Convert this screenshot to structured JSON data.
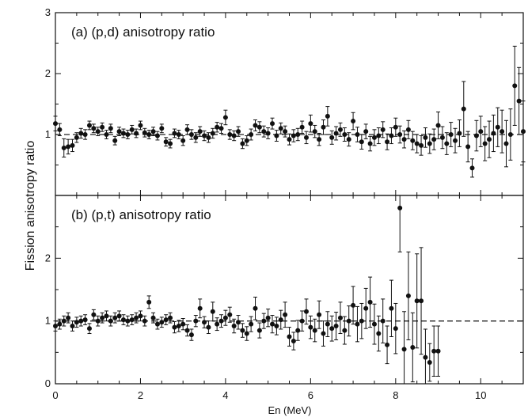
{
  "chart_data": {
    "type": "scatter",
    "ylabel": "Fission anisotropy ratio",
    "xlabel": "En (MeV)",
    "xlim": [
      0,
      11
    ],
    "x_ticks": [
      "0",
      "2",
      "4",
      "6",
      "8",
      "10"
    ],
    "panels": [
      {
        "title": "(a) (p,d) anisotropy ratio",
        "ylim": [
          0,
          3
        ],
        "y_ticks": [
          "1",
          "2",
          "3"
        ],
        "reference_line": 1,
        "x": [
          0.0,
          0.1,
          0.2,
          0.3,
          0.4,
          0.5,
          0.6,
          0.7,
          0.8,
          0.9,
          1.0,
          1.1,
          1.2,
          1.3,
          1.4,
          1.5,
          1.6,
          1.7,
          1.8,
          1.9,
          2.0,
          2.1,
          2.2,
          2.3,
          2.4,
          2.5,
          2.6,
          2.7,
          2.8,
          2.9,
          3.0,
          3.1,
          3.2,
          3.3,
          3.4,
          3.5,
          3.6,
          3.7,
          3.8,
          3.9,
          4.0,
          4.1,
          4.2,
          4.3,
          4.4,
          4.5,
          4.6,
          4.7,
          4.8,
          4.9,
          5.0,
          5.1,
          5.2,
          5.3,
          5.4,
          5.5,
          5.6,
          5.7,
          5.8,
          5.9,
          6.0,
          6.1,
          6.2,
          6.3,
          6.4,
          6.5,
          6.6,
          6.7,
          6.8,
          6.9,
          7.0,
          7.1,
          7.2,
          7.3,
          7.4,
          7.5,
          7.6,
          7.7,
          7.8,
          7.9,
          8.0,
          8.1,
          8.2,
          8.3,
          8.4,
          8.5,
          8.6,
          8.7,
          8.8,
          8.9,
          9.0,
          9.1,
          9.2,
          9.3,
          9.4,
          9.5,
          9.6,
          9.7,
          9.8,
          9.9,
          10.0,
          10.1,
          10.2,
          10.3,
          10.4,
          10.5,
          10.6,
          10.7,
          10.8,
          10.9,
          11.0
        ],
        "y": [
          1.18,
          1.08,
          0.78,
          0.8,
          0.82,
          0.95,
          1.02,
          1.0,
          1.15,
          1.1,
          1.05,
          1.12,
          1.0,
          1.1,
          0.9,
          1.05,
          1.02,
          1.0,
          1.08,
          1.02,
          1.15,
          1.03,
          1.0,
          1.05,
          0.98,
          1.1,
          0.88,
          0.85,
          1.02,
          1.0,
          0.9,
          1.08,
          1.0,
          0.95,
          1.05,
          0.98,
          0.95,
          1.02,
          1.12,
          1.1,
          1.28,
          1.0,
          0.98,
          1.05,
          0.85,
          0.9,
          1.0,
          1.15,
          1.12,
          1.05,
          1.02,
          1.18,
          0.98,
          1.1,
          1.05,
          0.92,
          0.98,
          1.0,
          1.12,
          0.95,
          1.18,
          1.05,
          0.92,
          1.12,
          1.3,
          0.95,
          1.02,
          1.08,
          1.0,
          0.92,
          1.22,
          1.0,
          0.88,
          1.05,
          0.85,
          0.95,
          0.98,
          1.08,
          0.88,
          0.98,
          1.12,
          1.0,
          0.92,
          1.08,
          0.9,
          0.85,
          0.82,
          0.95,
          0.85,
          0.92,
          1.15,
          0.95,
          0.85,
          1.0,
          0.9,
          1.02,
          1.42,
          0.8,
          0.45,
          0.98,
          1.05,
          0.85,
          0.92,
          1.02,
          1.12,
          1.05,
          0.85,
          1.0,
          1.8,
          1.55,
          1.05
        ],
        "err": [
          0.12,
          0.1,
          0.15,
          0.12,
          0.1,
          0.08,
          0.08,
          0.08,
          0.07,
          0.07,
          0.07,
          0.07,
          0.07,
          0.07,
          0.07,
          0.07,
          0.07,
          0.07,
          0.07,
          0.07,
          0.07,
          0.07,
          0.07,
          0.07,
          0.07,
          0.07,
          0.07,
          0.07,
          0.07,
          0.07,
          0.08,
          0.08,
          0.08,
          0.08,
          0.08,
          0.08,
          0.08,
          0.08,
          0.08,
          0.08,
          0.12,
          0.08,
          0.08,
          0.08,
          0.08,
          0.08,
          0.09,
          0.09,
          0.09,
          0.09,
          0.09,
          0.09,
          0.09,
          0.09,
          0.09,
          0.09,
          0.1,
          0.1,
          0.1,
          0.1,
          0.14,
          0.1,
          0.1,
          0.12,
          0.16,
          0.11,
          0.11,
          0.11,
          0.11,
          0.11,
          0.14,
          0.12,
          0.12,
          0.12,
          0.12,
          0.13,
          0.13,
          0.13,
          0.13,
          0.13,
          0.15,
          0.14,
          0.14,
          0.15,
          0.15,
          0.15,
          0.16,
          0.16,
          0.16,
          0.17,
          0.22,
          0.18,
          0.18,
          0.2,
          0.2,
          0.22,
          0.45,
          0.25,
          0.15,
          0.25,
          0.25,
          0.28,
          0.3,
          0.3,
          0.32,
          0.35,
          0.38,
          0.42,
          0.65,
          0.55,
          0.5
        ]
      },
      {
        "title": "(b) (p,t) anisotropy ratio",
        "ylim": [
          0,
          3
        ],
        "y_ticks": [
          "0",
          "1",
          "2"
        ],
        "reference_line": 1,
        "x": [
          0.0,
          0.1,
          0.2,
          0.3,
          0.4,
          0.5,
          0.6,
          0.7,
          0.8,
          0.9,
          1.0,
          1.1,
          1.2,
          1.3,
          1.4,
          1.5,
          1.6,
          1.7,
          1.8,
          1.9,
          2.0,
          2.1,
          2.2,
          2.3,
          2.4,
          2.5,
          2.6,
          2.7,
          2.8,
          2.9,
          3.0,
          3.1,
          3.2,
          3.3,
          3.4,
          3.5,
          3.6,
          3.7,
          3.8,
          3.9,
          4.0,
          4.1,
          4.2,
          4.3,
          4.4,
          4.5,
          4.6,
          4.7,
          4.8,
          4.9,
          5.0,
          5.1,
          5.2,
          5.3,
          5.4,
          5.5,
          5.6,
          5.7,
          5.8,
          5.9,
          6.0,
          6.1,
          6.2,
          6.3,
          6.4,
          6.5,
          6.6,
          6.7,
          6.8,
          6.9,
          7.0,
          7.1,
          7.2,
          7.3,
          7.4,
          7.5,
          7.6,
          7.7,
          7.8,
          7.9,
          8.0,
          8.1,
          8.2,
          8.3,
          8.4,
          8.5,
          8.6,
          8.7,
          8.8,
          8.9,
          9.0
        ],
        "y": [
          0.92,
          0.95,
          1.0,
          1.05,
          0.92,
          0.98,
          1.0,
          1.02,
          0.88,
          1.1,
          1.0,
          1.05,
          1.08,
          1.0,
          1.05,
          1.08,
          1.02,
          1.0,
          1.02,
          1.05,
          1.08,
          1.0,
          1.3,
          1.05,
          0.95,
          0.98,
          1.02,
          1.05,
          0.9,
          0.92,
          0.95,
          0.85,
          0.78,
          1.0,
          1.2,
          0.98,
          0.9,
          1.15,
          0.95,
          1.0,
          1.05,
          1.1,
          0.92,
          0.98,
          0.85,
          0.8,
          0.95,
          1.2,
          0.85,
          1.0,
          1.05,
          0.95,
          0.92,
          1.02,
          1.1,
          0.75,
          0.68,
          0.85,
          1.0,
          1.15,
          0.9,
          0.85,
          1.1,
          0.8,
          0.95,
          0.88,
          0.92,
          1.05,
          0.85,
          1.0,
          1.25,
          0.95,
          1.0,
          1.2,
          1.3,
          0.95,
          0.8,
          1.0,
          0.62,
          1.2,
          0.88,
          2.8,
          0.55,
          1.4,
          0.58,
          1.32,
          1.32,
          0.42,
          0.34,
          0.52,
          0.52
        ],
        "err": [
          0.08,
          0.08,
          0.08,
          0.08,
          0.08,
          0.08,
          0.08,
          0.08,
          0.08,
          0.08,
          0.08,
          0.08,
          0.08,
          0.08,
          0.08,
          0.08,
          0.08,
          0.08,
          0.08,
          0.08,
          0.08,
          0.08,
          0.1,
          0.08,
          0.08,
          0.08,
          0.08,
          0.08,
          0.09,
          0.09,
          0.09,
          0.09,
          0.09,
          0.09,
          0.15,
          0.09,
          0.1,
          0.15,
          0.1,
          0.1,
          0.12,
          0.12,
          0.11,
          0.11,
          0.11,
          0.11,
          0.12,
          0.18,
          0.12,
          0.12,
          0.14,
          0.14,
          0.14,
          0.15,
          0.2,
          0.15,
          0.14,
          0.16,
          0.16,
          0.2,
          0.18,
          0.18,
          0.22,
          0.2,
          0.2,
          0.2,
          0.22,
          0.25,
          0.22,
          0.24,
          0.3,
          0.28,
          0.28,
          0.32,
          0.4,
          0.32,
          0.28,
          0.35,
          0.3,
          0.45,
          0.4,
          0.7,
          0.6,
          0.7,
          0.55,
          0.75,
          0.85,
          0.45,
          0.3,
          0.4,
          0.4
        ]
      }
    ]
  }
}
